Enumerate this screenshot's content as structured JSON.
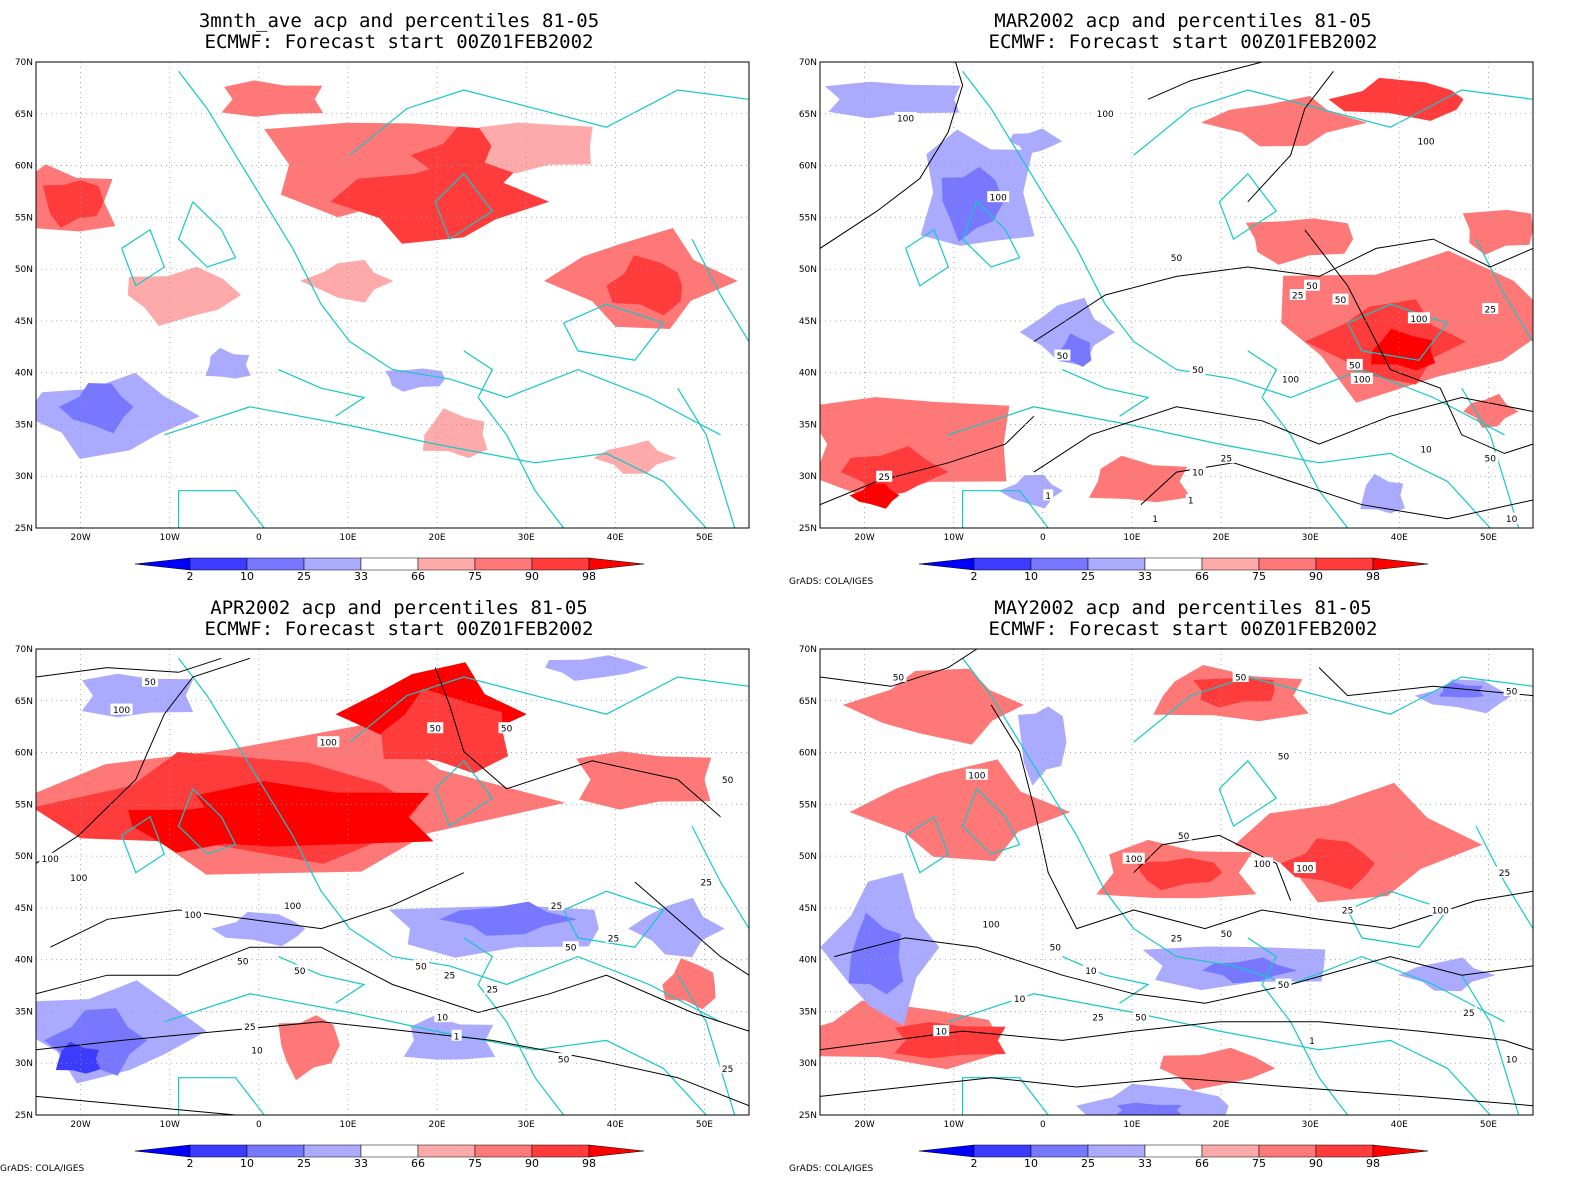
{
  "colorbar": {
    "labels": [
      "2",
      "10",
      "25",
      "33",
      "66",
      "75",
      "90",
      "98"
    ],
    "colors": [
      "#0000ff",
      "#3c3cff",
      "#7878ff",
      "#aaaaff",
      "#ffffff",
      "#ffaaaa",
      "#ff7878",
      "#ff3c3c",
      "#ff0000"
    ]
  },
  "axes": {
    "lat_labels": [
      "70N",
      "65N",
      "60N",
      "55N",
      "50N",
      "45N",
      "40N",
      "35N",
      "30N",
      "25N"
    ],
    "lon_labels": [
      "20W",
      "10W",
      "0",
      "10E",
      "20E",
      "30E",
      "40E",
      "50E"
    ]
  },
  "credit": "GrADS: COLA/IGES",
  "panels": [
    {
      "title1": "3mnth_ave acp and percentiles 81-05",
      "title2": "ECMWF: Forecast start 00Z01FEB2002",
      "contour_labels": []
    },
    {
      "title1": "MAR2002 acp and percentiles 81-05",
      "title2": "ECMWF: Forecast start 00Z01FEB2002",
      "contour_labels": [
        "100",
        "100",
        "50",
        "100",
        "50",
        "50",
        "100",
        "100",
        "25",
        "50",
        "100",
        "50",
        "50",
        "25",
        "50",
        "100",
        "10",
        "10",
        "25",
        "25",
        "1",
        "1",
        "1",
        "10"
      ]
    },
    {
      "title1": "APR2002 acp and percentiles 81-05",
      "title2": "ECMWF: Forecast start 00Z01FEB2002",
      "contour_labels": [
        "50",
        "100",
        "100",
        "50",
        "50",
        "50",
        "100",
        "100",
        "100",
        "100",
        "25",
        "25",
        "25",
        "50",
        "50",
        "25",
        "50",
        "50",
        "25",
        "10",
        "10",
        "25",
        "1",
        "50",
        "25"
      ]
    },
    {
      "title1": "MAY2002 acp and percentiles 81-05",
      "title2": "ECMWF: Forecast start 00Z01FEB2002",
      "contour_labels": [
        "50",
        "50",
        "50",
        "100",
        "50",
        "50",
        "100",
        "100",
        "100",
        "50",
        "100",
        "100",
        "25",
        "50",
        "25",
        "50",
        "25",
        "10",
        "10",
        "25",
        "10",
        "1",
        "50",
        "25",
        "10"
      ]
    }
  ]
}
